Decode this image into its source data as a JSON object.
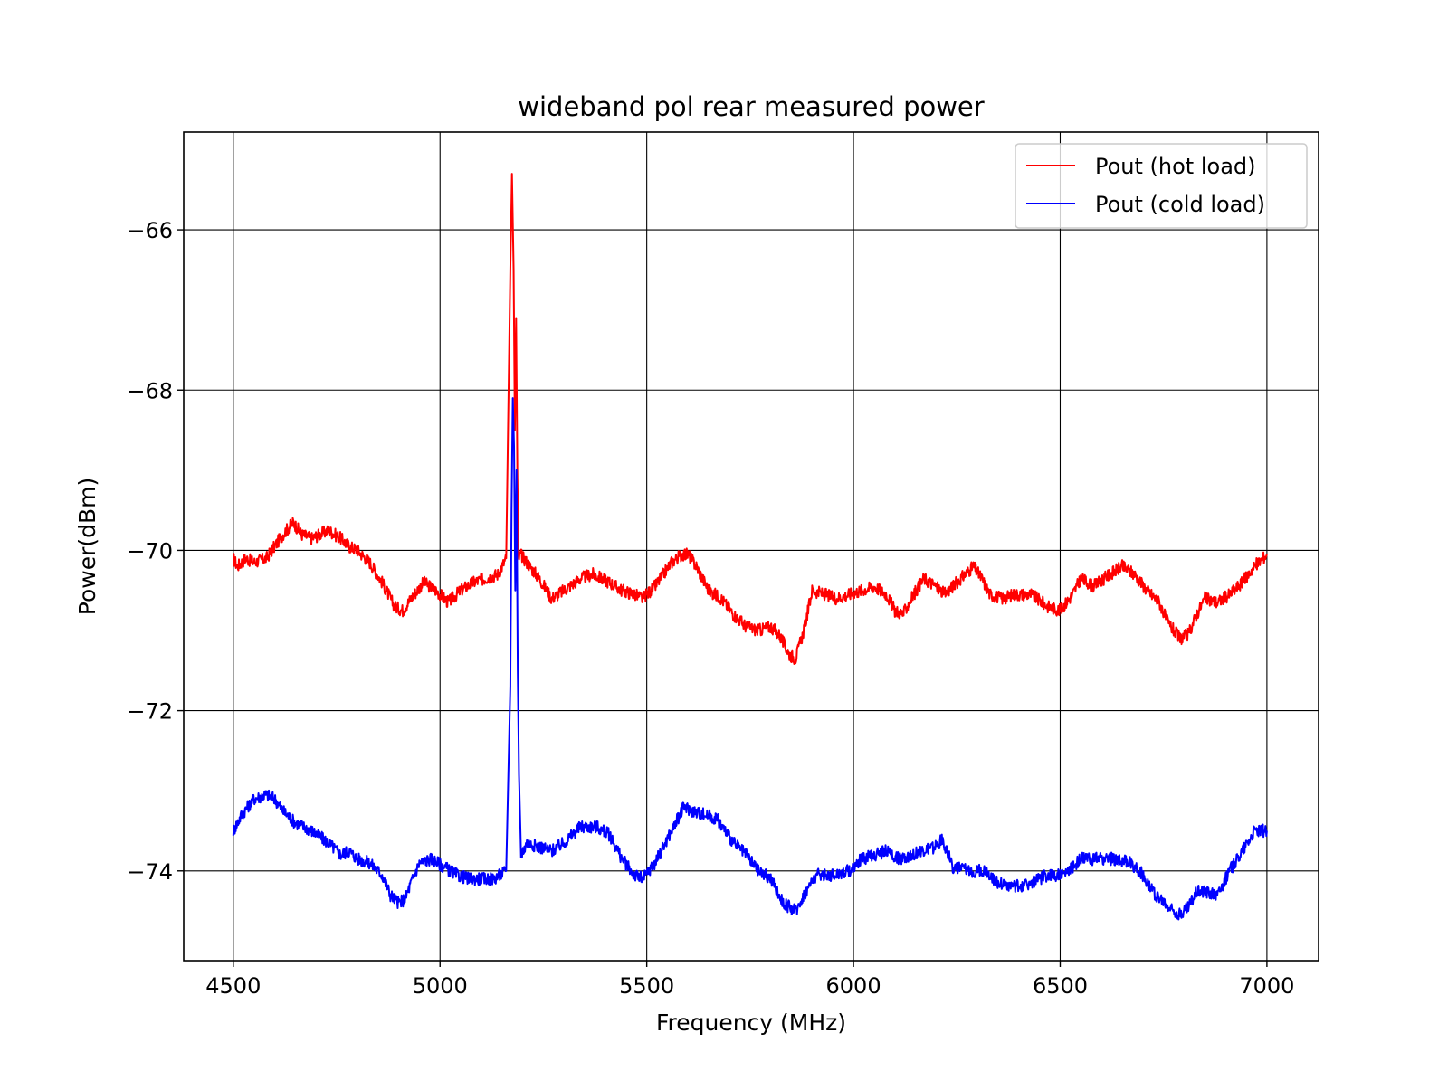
{
  "chart_data": {
    "type": "line",
    "title": "wideband pol rear measured power",
    "xlabel": "Frequency (MHz)",
    "ylabel": "Power(dBm)",
    "xlim": [
      4380,
      7125
    ],
    "ylim": [
      -75.12,
      -64.78
    ],
    "xticks": [
      4500,
      5000,
      5500,
      6000,
      6500,
      7000
    ],
    "xtick_labels": [
      "4500",
      "5000",
      "5500",
      "6000",
      "6500",
      "7000"
    ],
    "yticks": [
      -66,
      -68,
      -70,
      -72,
      -74
    ],
    "ytick_labels": [
      "−66",
      "−68",
      "−70",
      "−72",
      "−74"
    ],
    "grid": true,
    "legend_position": "top-right",
    "series": [
      {
        "name": "Pout (hot load)",
        "color": "#ff0000",
        "x": [
          4500,
          4510,
          4530,
          4550,
          4580,
          4600,
          4620,
          4645,
          4665,
          4690,
          4730,
          4760,
          4780,
          4800,
          4830,
          4860,
          4890,
          4910,
          4930,
          4960,
          4990,
          5020,
          5050,
          5080,
          5110,
          5140,
          5160,
          5170,
          5174,
          5178,
          5181,
          5184,
          5187,
          5190,
          5195,
          5210,
          5240,
          5270,
          5300,
          5340,
          5370,
          5410,
          5440,
          5470,
          5490,
          5520,
          5560,
          5585,
          5600,
          5620,
          5650,
          5680,
          5710,
          5740,
          5770,
          5800,
          5820,
          5845,
          5860,
          5880,
          5900,
          5930,
          5960,
          5990,
          6020,
          6050,
          6080,
          6100,
          6120,
          6140,
          6170,
          6200,
          6220,
          6260,
          6290,
          6310,
          6330,
          6360,
          6390,
          6430,
          6470,
          6500,
          6530,
          6550,
          6580,
          6620,
          6650,
          6680,
          6710,
          6740,
          6760,
          6790,
          6810,
          6830,
          6850,
          6880,
          6910,
          6940,
          6970,
          7000
        ],
        "y": [
          -70.1,
          -70.2,
          -70.1,
          -70.15,
          -70.1,
          -69.95,
          -69.8,
          -69.65,
          -69.8,
          -69.85,
          -69.75,
          -69.85,
          -69.95,
          -70.0,
          -70.15,
          -70.4,
          -70.7,
          -70.75,
          -70.6,
          -70.4,
          -70.5,
          -70.65,
          -70.5,
          -70.4,
          -70.35,
          -70.3,
          -70.1,
          -66.5,
          -65.3,
          -66.5,
          -68.5,
          -67.1,
          -69.0,
          -70.1,
          -70.05,
          -70.15,
          -70.35,
          -70.6,
          -70.5,
          -70.35,
          -70.3,
          -70.4,
          -70.5,
          -70.55,
          -70.6,
          -70.45,
          -70.15,
          -70.05,
          -70.05,
          -70.2,
          -70.5,
          -70.6,
          -70.8,
          -70.95,
          -71.0,
          -70.95,
          -71.05,
          -71.3,
          -71.35,
          -71.0,
          -70.5,
          -70.55,
          -70.6,
          -70.55,
          -70.5,
          -70.45,
          -70.55,
          -70.75,
          -70.8,
          -70.6,
          -70.35,
          -70.45,
          -70.55,
          -70.35,
          -70.2,
          -70.35,
          -70.55,
          -70.6,
          -70.55,
          -70.55,
          -70.7,
          -70.75,
          -70.55,
          -70.35,
          -70.45,
          -70.3,
          -70.2,
          -70.3,
          -70.5,
          -70.65,
          -70.9,
          -71.1,
          -71.05,
          -70.8,
          -70.6,
          -70.65,
          -70.55,
          -70.4,
          -70.2,
          -70.05
        ]
      },
      {
        "name": "Pout (cold load)",
        "color": "#0000ff",
        "x": [
          4500,
          4520,
          4550,
          4580,
          4600,
          4620,
          4650,
          4690,
          4730,
          4760,
          4780,
          4800,
          4830,
          4860,
          4880,
          4900,
          4915,
          4930,
          4950,
          4980,
          5010,
          5040,
          5070,
          5100,
          5130,
          5160,
          5170,
          5173,
          5176,
          5179,
          5182,
          5185,
          5188,
          5191,
          5196,
          5210,
          5240,
          5270,
          5300,
          5340,
          5380,
          5410,
          5440,
          5470,
          5490,
          5520,
          5560,
          5590,
          5610,
          5640,
          5670,
          5690,
          5710,
          5740,
          5770,
          5800,
          5830,
          5860,
          5880,
          5910,
          5950,
          5990,
          6020,
          6050,
          6080,
          6110,
          6140,
          6170,
          6200,
          6215,
          6240,
          6280,
          6320,
          6350,
          6390,
          6430,
          6470,
          6510,
          6550,
          6590,
          6630,
          6670,
          6700,
          6730,
          6760,
          6790,
          6810,
          6830,
          6850,
          6880,
          6910,
          6940,
          6970,
          7000
        ],
        "y": [
          -73.5,
          -73.3,
          -73.1,
          -73.05,
          -73.1,
          -73.25,
          -73.4,
          -73.5,
          -73.65,
          -73.8,
          -73.75,
          -73.85,
          -73.9,
          -74.05,
          -74.3,
          -74.4,
          -74.35,
          -74.15,
          -73.9,
          -73.85,
          -73.95,
          -74.05,
          -74.1,
          -74.1,
          -74.1,
          -74.0,
          -71.7,
          -69.5,
          -68.1,
          -68.7,
          -70.5,
          -69.0,
          -71.5,
          -72.8,
          -73.8,
          -73.65,
          -73.7,
          -73.75,
          -73.65,
          -73.45,
          -73.45,
          -73.55,
          -73.85,
          -74.05,
          -74.1,
          -73.9,
          -73.5,
          -73.2,
          -73.25,
          -73.3,
          -73.35,
          -73.5,
          -73.65,
          -73.8,
          -74.0,
          -74.1,
          -74.4,
          -74.5,
          -74.3,
          -74.05,
          -74.05,
          -74.0,
          -73.85,
          -73.8,
          -73.75,
          -73.85,
          -73.8,
          -73.75,
          -73.7,
          -73.6,
          -73.95,
          -74.0,
          -74.0,
          -74.15,
          -74.2,
          -74.15,
          -74.05,
          -74.05,
          -73.85,
          -73.85,
          -73.85,
          -73.9,
          -74.05,
          -74.3,
          -74.45,
          -74.55,
          -74.45,
          -74.25,
          -74.25,
          -74.3,
          -74.0,
          -73.75,
          -73.5,
          -73.5
        ]
      }
    ]
  }
}
